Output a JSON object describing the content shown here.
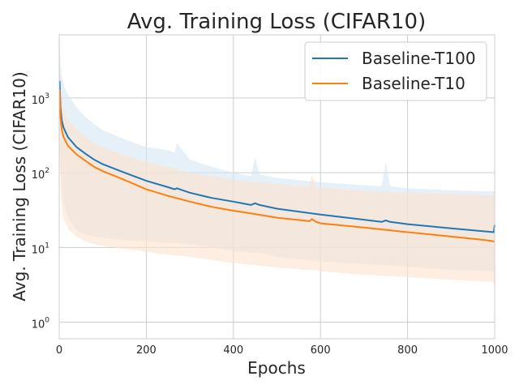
{
  "chart_data": {
    "type": "line",
    "title": "Avg. Training Loss (CIFAR10)",
    "xlabel": "Epochs",
    "ylabel": "Avg. Training Loss (CIFAR10)",
    "xlim": [
      0,
      1000
    ],
    "ylim": [
      0.6,
      7000
    ],
    "yscale": "log",
    "grid": true,
    "legend_position": "top-right",
    "xticks": [
      0,
      200,
      400,
      600,
      800,
      1000
    ],
    "yticks": [
      {
        "value": 1,
        "base": "10",
        "exp": "0"
      },
      {
        "value": 10,
        "base": "10",
        "exp": "1"
      },
      {
        "value": 100,
        "base": "10",
        "exp": "2"
      },
      {
        "value": 1000,
        "base": "10",
        "exp": "3"
      }
    ],
    "series": [
      {
        "name": "Baseline-T100",
        "color": "#1f77b4",
        "band_color": "#d6e6f4",
        "x": [
          1,
          3,
          6,
          10,
          20,
          40,
          60,
          80,
          100,
          150,
          200,
          250,
          265,
          270,
          300,
          350,
          400,
          440,
          450,
          460,
          500,
          600,
          700,
          740,
          750,
          760,
          800,
          900,
          998,
          1000
        ],
        "y": [
          1700,
          750,
          500,
          400,
          300,
          220,
          180,
          150,
          130,
          100,
          78,
          64,
          60,
          62,
          54,
          46,
          41,
          37,
          39,
          37,
          33,
          27.5,
          23.5,
          22,
          23,
          22,
          20.5,
          18,
          16,
          20
        ],
        "upper": [
          6000,
          3000,
          2000,
          1500,
          1100,
          750,
          560,
          450,
          370,
          280,
          220,
          200,
          185,
          250,
          150,
          120,
          100,
          90,
          160,
          95,
          85,
          75,
          68,
          66,
          140,
          66,
          62,
          58,
          56,
          56
        ],
        "lower": [
          400,
          130,
          60,
          40,
          25,
          17,
          15,
          14,
          13.5,
          12.5,
          12,
          11.5,
          11.5,
          11.5,
          11,
          10,
          9,
          8.5,
          8.5,
          8.5,
          7.5,
          6.5,
          6,
          5.8,
          5.8,
          5.8,
          5.5,
          5,
          4.8,
          4.8
        ]
      },
      {
        "name": "Baseline-T10",
        "color": "#ff7f0e",
        "band_color": "#fde3cd",
        "x": [
          1,
          3,
          6,
          10,
          20,
          40,
          60,
          80,
          100,
          150,
          200,
          250,
          300,
          350,
          400,
          450,
          500,
          575,
          580,
          590,
          600,
          700,
          800,
          900,
          980,
          1000
        ],
        "y": [
          1300,
          550,
          380,
          300,
          230,
          175,
          145,
          120,
          105,
          80,
          60,
          49,
          41,
          35,
          31,
          28,
          25,
          22.5,
          24,
          22,
          21,
          18.5,
          16,
          14,
          12.5,
          12
        ],
        "upper": [
          3000,
          1300,
          900,
          700,
          500,
          380,
          300,
          250,
          220,
          170,
          140,
          120,
          100,
          90,
          80,
          75,
          70,
          65,
          95,
          65,
          63,
          57,
          54,
          52,
          50,
          50
        ],
        "lower": [
          180,
          60,
          33,
          24,
          18,
          14,
          12,
          11,
          10.5,
          9.5,
          8.8,
          8,
          7.5,
          6.8,
          6.2,
          5.8,
          5.4,
          5,
          5,
          5,
          4.8,
          4.3,
          4,
          3.7,
          3.5,
          3.4
        ]
      }
    ]
  }
}
